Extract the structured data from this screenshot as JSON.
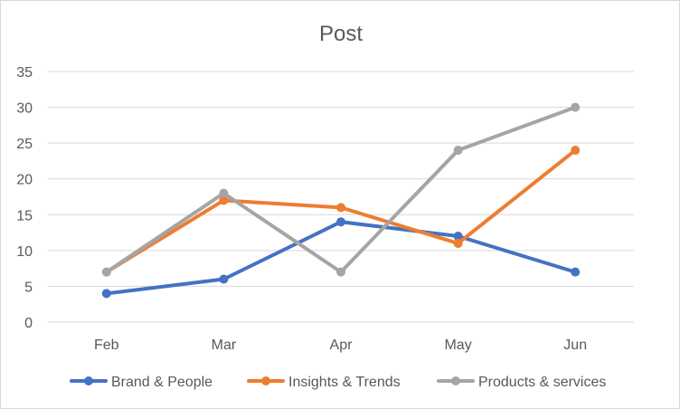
{
  "chart_data": {
    "type": "line",
    "title": "Post",
    "xlabel": "",
    "ylabel": "",
    "categories": [
      "Feb",
      "Mar",
      "Apr",
      "May",
      "Jun"
    ],
    "ylim": [
      0,
      35
    ],
    "yticks": [
      0,
      5,
      10,
      15,
      20,
      25,
      30,
      35
    ],
    "ytick_labels": [
      "0",
      "5",
      "10",
      "15",
      "20",
      "25",
      "30",
      "35"
    ],
    "grid": true,
    "legend_position": "bottom",
    "series": [
      {
        "name": "Brand & People",
        "color": "#4472C4",
        "values": [
          4,
          6,
          14,
          12,
          7
        ]
      },
      {
        "name": "Insights & Trends",
        "color": "#ED7D31",
        "values": [
          7,
          17,
          16,
          11,
          24
        ]
      },
      {
        "name": "Products & services",
        "color": "#A5A5A5",
        "values": [
          7,
          18,
          7,
          24,
          30
        ]
      }
    ]
  }
}
